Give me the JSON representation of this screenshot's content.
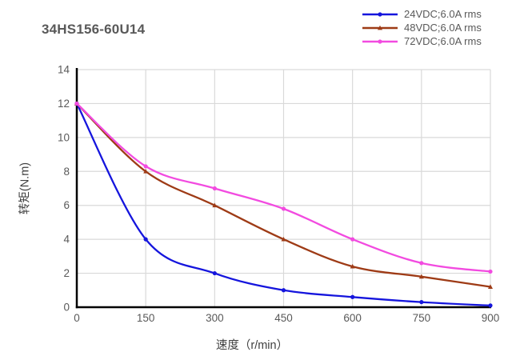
{
  "chart_data": {
    "type": "line",
    "title": "34HS156-60U14",
    "xlabel": "速度（r/min）",
    "ylabel": "转矩(N.m)",
    "x": [
      0,
      150,
      300,
      450,
      600,
      750,
      900
    ],
    "series": [
      {
        "name": "24VDC;6.0A rms",
        "color": "#1515DD",
        "marker": "circle",
        "values": [
          12,
          4,
          2,
          1,
          0.6,
          0.3,
          0.1
        ]
      },
      {
        "name": "48VDC;6.0A rms",
        "color": "#9E3B16",
        "marker": "triangle",
        "values": [
          12,
          8,
          6,
          4,
          2.4,
          1.8,
          1.2
        ]
      },
      {
        "name": "72VDC;6.0A rms",
        "color": "#F24BE0",
        "marker": "circle",
        "values": [
          12,
          8.3,
          7,
          5.8,
          4,
          2.6,
          2.1
        ]
      }
    ],
    "xlim": [
      0,
      900
    ],
    "ylim": [
      0,
      14
    ],
    "x_ticks": [
      0,
      150,
      300,
      450,
      600,
      750,
      900
    ],
    "y_ticks": [
      0,
      2,
      4,
      6,
      8,
      10,
      12,
      14
    ],
    "grid": true,
    "legend_position": "top-right",
    "colors": {
      "title": "#595959",
      "axis": "#000000",
      "grid": "#D9D9D9",
      "tick_text": "#595959",
      "axis_title_text": "#404040",
      "legend_text": "#595959",
      "background": "#FFFFFF"
    }
  }
}
